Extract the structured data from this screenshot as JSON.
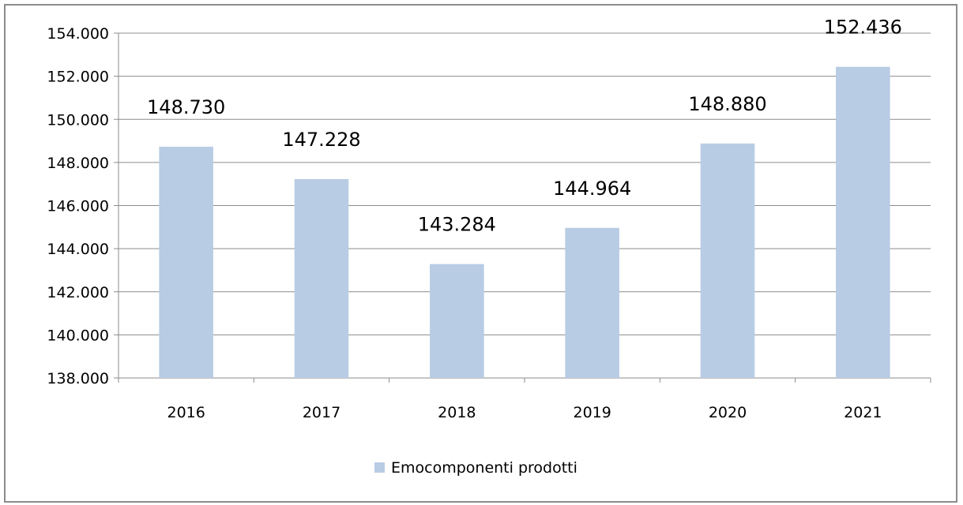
{
  "chart_data": {
    "type": "bar",
    "title": "",
    "xlabel": "",
    "ylabel": "",
    "categories": [
      "2016",
      "2017",
      "2018",
      "2019",
      "2020",
      "2021"
    ],
    "series": [
      {
        "name": "Emocomponenti prodotti",
        "values": [
          148730,
          147228,
          143284,
          144964,
          148880,
          152436
        ],
        "labels": [
          "148.730",
          "147.228",
          "143.284",
          "144.964",
          "148.880",
          "152.436"
        ],
        "color": "#b8cce4"
      }
    ],
    "ylim": [
      138000,
      154000
    ],
    "yticks": [
      {
        "value": 138000,
        "label": "138.000"
      },
      {
        "value": 140000,
        "label": "140.000"
      },
      {
        "value": 142000,
        "label": "142.000"
      },
      {
        "value": 144000,
        "label": "144.000"
      },
      {
        "value": 146000,
        "label": "146.000"
      },
      {
        "value": 148000,
        "label": "148.000"
      },
      {
        "value": 150000,
        "label": "150.000"
      },
      {
        "value": 152000,
        "label": "152.000"
      },
      {
        "value": 154000,
        "label": "154.000"
      }
    ],
    "grid": true,
    "legend": "bottom-center"
  }
}
